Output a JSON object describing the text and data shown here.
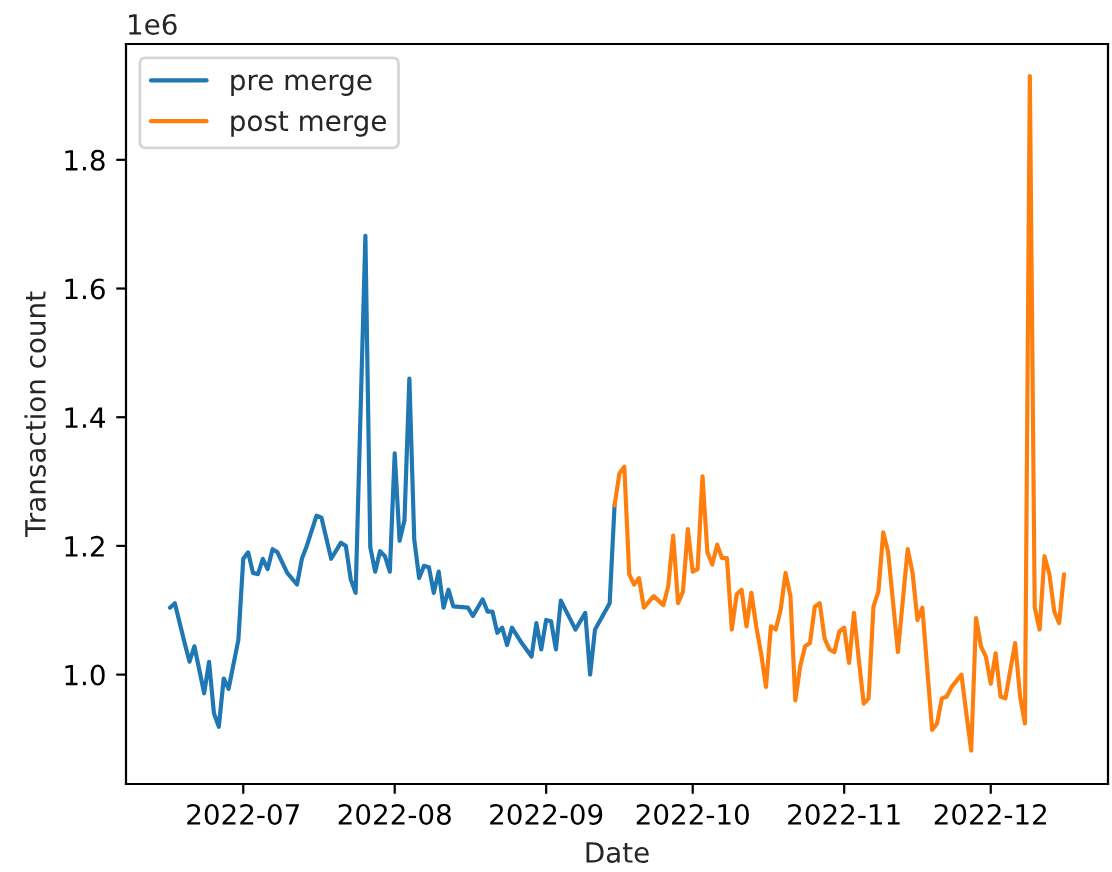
{
  "chart_data": {
    "type": "line",
    "xlabel": "Date",
    "ylabel": "Transaction count",
    "annotations": [
      "1e6"
    ],
    "xlim": [
      "2022-06-07",
      "2022-12-25"
    ],
    "xticks": [
      "2022-07",
      "2022-08",
      "2022-09",
      "2022-10",
      "2022-11",
      "2022-12"
    ],
    "ylim": [
      0.83,
      1.98
    ],
    "yticks": [
      {
        "value": 1,
        "label": "1.0"
      },
      1.2,
      1.4,
      1.6,
      1.8
    ],
    "legend": "top left",
    "grid": false,
    "series": [
      {
        "name": "pre merge",
        "color": "#1f77b4",
        "x": [
          "2022-06-16",
          "2022-06-17",
          "2022-06-19",
          "2022-06-20",
          "2022-06-21",
          "2022-06-23",
          "2022-06-24",
          "2022-06-25",
          "2022-06-26",
          "2022-06-27",
          "2022-06-28",
          "2022-06-30",
          "2022-07-01",
          "2022-07-02",
          "2022-07-03",
          "2022-07-04",
          "2022-07-05",
          "2022-07-06",
          "2022-07-07",
          "2022-07-08",
          "2022-07-10",
          "2022-07-12",
          "2022-07-13",
          "2022-07-14",
          "2022-07-16",
          "2022-07-17",
          "2022-07-19",
          "2022-07-21",
          "2022-07-22",
          "2022-07-23",
          "2022-07-24",
          "2022-07-26",
          "2022-07-27",
          "2022-07-28",
          "2022-07-29",
          "2022-07-30",
          "2022-07-31",
          "2022-08-01",
          "2022-08-02",
          "2022-08-03",
          "2022-08-04",
          "2022-08-05",
          "2022-08-06",
          "2022-08-07",
          "2022-08-08",
          "2022-08-09",
          "2022-08-10",
          "2022-08-11",
          "2022-08-12",
          "2022-08-13",
          "2022-08-16",
          "2022-08-17",
          "2022-08-19",
          "2022-08-20",
          "2022-08-21",
          "2022-08-22",
          "2022-08-23",
          "2022-08-24",
          "2022-08-25",
          "2022-08-27",
          "2022-08-29",
          "2022-08-30",
          "2022-08-31",
          "2022-09-01",
          "2022-09-02",
          "2022-09-03",
          "2022-09-04",
          "2022-09-06",
          "2022-09-07",
          "2022-09-09",
          "2022-09-10",
          "2022-09-11",
          "2022-09-14",
          "2022-09-15"
        ],
        "values": [
          1.104,
          1.111,
          1.049,
          1.02,
          1.044,
          0.971,
          1.02,
          0.94,
          0.919,
          0.994,
          0.978,
          1.054,
          1.18,
          1.19,
          1.158,
          1.156,
          1.18,
          1.164,
          1.195,
          1.19,
          1.158,
          1.14,
          1.18,
          1.2,
          1.247,
          1.244,
          1.18,
          1.205,
          1.2,
          1.148,
          1.127,
          1.682,
          1.198,
          1.16,
          1.192,
          1.184,
          1.16,
          1.344,
          1.208,
          1.24,
          1.46,
          1.21,
          1.15,
          1.169,
          1.167,
          1.127,
          1.16,
          1.104,
          1.132,
          1.106,
          1.104,
          1.091,
          1.117,
          1.098,
          1.098,
          1.065,
          1.073,
          1.046,
          1.073,
          1.049,
          1.028,
          1.08,
          1.039,
          1.085,
          1.083,
          1.039,
          1.115,
          1.085,
          1.07,
          1.096,
          1.0,
          1.07,
          1.111,
          1.263
        ]
      },
      {
        "name": "post merge",
        "color": "#ff7f0e",
        "x": [
          "2022-09-15",
          "2022-09-16",
          "2022-09-17",
          "2022-09-18",
          "2022-09-19",
          "2022-09-20",
          "2022-09-21",
          "2022-09-23",
          "2022-09-25",
          "2022-09-26",
          "2022-09-27",
          "2022-09-28",
          "2022-09-29",
          "2022-09-30",
          "2022-10-01",
          "2022-10-02",
          "2022-10-03",
          "2022-10-04",
          "2022-10-05",
          "2022-10-06",
          "2022-10-07",
          "2022-10-08",
          "2022-10-09",
          "2022-10-10",
          "2022-10-11",
          "2022-10-12",
          "2022-10-13",
          "2022-10-14",
          "2022-10-15",
          "2022-10-16",
          "2022-10-17",
          "2022-10-18",
          "2022-10-19",
          "2022-10-20",
          "2022-10-21",
          "2022-10-22",
          "2022-10-23",
          "2022-10-24",
          "2022-10-25",
          "2022-10-26",
          "2022-10-27",
          "2022-10-28",
          "2022-10-29",
          "2022-10-30",
          "2022-10-31",
          "2022-11-01",
          "2022-11-02",
          "2022-11-03",
          "2022-11-04",
          "2022-11-05",
          "2022-11-06",
          "2022-11-07",
          "2022-11-08",
          "2022-11-09",
          "2022-11-10",
          "2022-11-12",
          "2022-11-14",
          "2022-11-15",
          "2022-11-16",
          "2022-11-17",
          "2022-11-19",
          "2022-11-20",
          "2022-11-21",
          "2022-11-22",
          "2022-11-23",
          "2022-11-25",
          "2022-11-26",
          "2022-11-27",
          "2022-11-28",
          "2022-11-29",
          "2022-11-30",
          "2022-12-01",
          "2022-12-02",
          "2022-12-03",
          "2022-12-04",
          "2022-12-05",
          "2022-12-06",
          "2022-12-07",
          "2022-12-08",
          "2022-12-09",
          "2022-12-10",
          "2022-12-11",
          "2022-12-12",
          "2022-12-13",
          "2022-12-14",
          "2022-12-15",
          "2022-12-16"
        ],
        "values": [
          1.263,
          1.313,
          1.323,
          1.156,
          1.14,
          1.15,
          1.104,
          1.122,
          1.108,
          1.138,
          1.216,
          1.111,
          1.129,
          1.226,
          1.16,
          1.164,
          1.308,
          1.19,
          1.171,
          1.202,
          1.181,
          1.181,
          1.07,
          1.125,
          1.132,
          1.075,
          1.127,
          1.075,
          1.033,
          0.981,
          1.075,
          1.07,
          1.101,
          1.158,
          1.122,
          0.96,
          1.013,
          1.044,
          1.049,
          1.106,
          1.111,
          1.056,
          1.039,
          1.035,
          1.067,
          1.073,
          1.018,
          1.096,
          1.023,
          0.955,
          0.963,
          1.106,
          1.129,
          1.221,
          1.19,
          1.035,
          1.195,
          1.158,
          1.085,
          1.104,
          0.914,
          0.924,
          0.963,
          0.966,
          0.981,
          1.0,
          0.94,
          0.882,
          1.088,
          1.044,
          1.028,
          0.986,
          1.033,
          0.966,
          0.963,
          1.007,
          1.049,
          0.966,
          0.924,
          1.93,
          1.104,
          1.07,
          1.184,
          1.156,
          1.098,
          1.08,
          1.156
        ]
      }
    ]
  }
}
